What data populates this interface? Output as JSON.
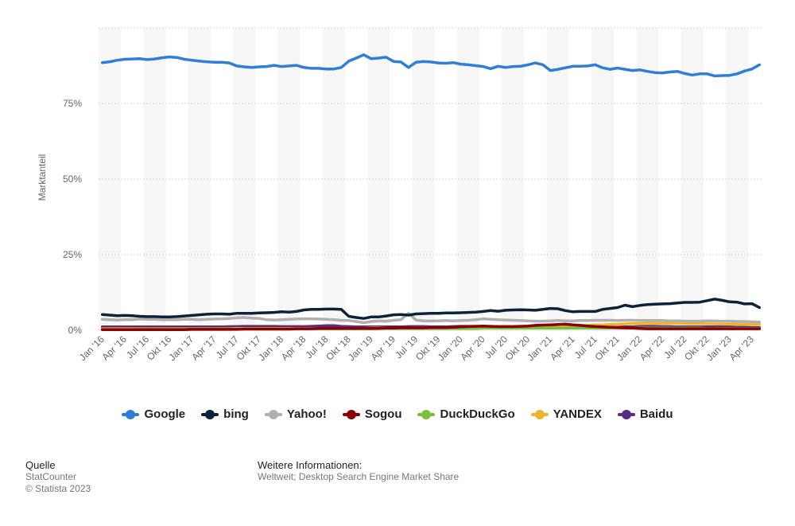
{
  "chart_data": {
    "type": "line",
    "ylabel": "Marktanteil",
    "ylim": [
      0,
      100
    ],
    "yticks": [
      0,
      25,
      50,
      75
    ],
    "ytick_labels": [
      "0%",
      "25%",
      "50%",
      "75%"
    ],
    "grid": true,
    "legend_position": "bottom",
    "x": [
      "Jan '16",
      "Feb '16",
      "Mär '16",
      "Apr '16",
      "Mai '16",
      "Jun '16",
      "Jul '16",
      "Aug '16",
      "Sep '16",
      "Okt '16",
      "Nov '16",
      "Dez '16",
      "Jan '17",
      "Feb '17",
      "Mär '17",
      "Apr '17",
      "Mai '17",
      "Jun '17",
      "Jul '17",
      "Aug '17",
      "Sep '17",
      "Okt '17",
      "Nov '17",
      "Dez '17",
      "Jan '18",
      "Feb '18",
      "Mär '18",
      "Apr '18",
      "Mai '18",
      "Jun '18",
      "Jul '18",
      "Aug '18",
      "Sep '18",
      "Okt '18",
      "Nov '18",
      "Dez '18",
      "Jan '19",
      "Feb '19",
      "Mär '19",
      "Apr '19",
      "Mai '19",
      "Jun '19",
      "Jul '19",
      "Aug '19",
      "Sep '19",
      "Okt '19",
      "Nov '19",
      "Dez '19",
      "Jan '20",
      "Feb '20",
      "Mär '20",
      "Apr '20",
      "Mai '20",
      "Jun '20",
      "Jul '20",
      "Aug '20",
      "Sep '20",
      "Okt '20",
      "Nov '20",
      "Dez '20",
      "Jan '21",
      "Feb '21",
      "Mär '21",
      "Apr '21",
      "Mai '21",
      "Jun '21",
      "Jul '21",
      "Aug '21",
      "Sep '21",
      "Okt '21",
      "Nov '21",
      "Dez '21",
      "Jan '22",
      "Feb '22",
      "Mär '22",
      "Apr '22",
      "Mai '22",
      "Jun '22",
      "Jul '22",
      "Aug '22",
      "Sep '22",
      "Okt '22",
      "Nov '22",
      "Dez '22",
      "Jan '23",
      "Feb '23",
      "Mär '23",
      "Apr '23",
      "Mai '23"
    ],
    "xtick_labels": [
      "Jan '16",
      "Apr '16",
      "Jul '16",
      "Okt '16",
      "Jan '17",
      "Apr '17",
      "Jul '17",
      "Okt '17",
      "Jan '18",
      "Apr '18",
      "Jul '18",
      "Okt '18",
      "Jan '19",
      "Apr '19",
      "Jul '19",
      "Okt '19",
      "Jan '20",
      "Apr '20",
      "Jul '20",
      "Okt '20",
      "Jan '21",
      "Apr '21",
      "Jul '21",
      "Okt '21",
      "Jan '22",
      "Apr '22",
      "Jul '22",
      "Okt '22",
      "Jan '23",
      "Apr '23"
    ],
    "series": [
      {
        "name": "Google",
        "color": "#2f7ed8",
        "values": [
          88.5,
          88.8,
          89.3,
          89.6,
          89.7,
          89.8,
          89.5,
          89.7,
          90.1,
          90.4,
          90.2,
          89.6,
          89.3,
          89.0,
          88.8,
          88.6,
          88.6,
          88.4,
          87.4,
          87.1,
          86.9,
          87.1,
          87.2,
          87.6,
          87.2,
          87.4,
          87.6,
          86.9,
          86.6,
          86.6,
          86.4,
          86.4,
          86.9,
          89.0,
          90.0,
          91.1,
          89.8,
          90.0,
          90.3,
          88.9,
          88.7,
          86.9,
          88.6,
          88.9,
          88.7,
          88.4,
          88.3,
          88.5,
          88.0,
          87.8,
          87.5,
          87.2,
          86.5,
          87.3,
          86.9,
          87.2,
          87.3,
          87.8,
          88.4,
          87.8,
          85.9,
          86.3,
          86.8,
          87.3,
          87.3,
          87.4,
          87.8,
          86.8,
          86.3,
          86.7,
          86.3,
          85.9,
          86.1,
          85.6,
          85.2,
          85.1,
          85.4,
          85.6,
          84.9,
          84.4,
          84.8,
          84.8,
          84.1,
          84.2,
          84.3,
          84.8,
          85.7,
          86.4,
          87.8
        ]
      },
      {
        "name": "bing",
        "color": "#0d233a",
        "values": [
          5.2,
          5.0,
          4.8,
          4.9,
          4.8,
          4.6,
          4.5,
          4.5,
          4.4,
          4.4,
          4.5,
          4.7,
          4.9,
          5.1,
          5.3,
          5.4,
          5.4,
          5.3,
          5.6,
          5.6,
          5.6,
          5.7,
          5.8,
          5.9,
          6.1,
          6.0,
          6.2,
          6.7,
          6.9,
          6.9,
          7.0,
          7.0,
          6.9,
          4.6,
          4.2,
          3.9,
          4.4,
          4.4,
          4.7,
          5.1,
          5.2,
          5.0,
          5.4,
          5.5,
          5.6,
          5.6,
          5.7,
          5.7,
          5.8,
          5.9,
          6.0,
          6.2,
          6.5,
          6.3,
          6.6,
          6.7,
          6.8,
          6.7,
          6.6,
          6.9,
          7.2,
          7.1,
          6.5,
          6.1,
          6.2,
          6.2,
          6.2,
          6.9,
          7.2,
          7.5,
          8.3,
          7.8,
          8.2,
          8.5,
          8.6,
          8.7,
          8.8,
          9.0,
          9.2,
          9.2,
          9.3,
          9.8,
          10.3,
          9.9,
          9.4,
          9.3,
          8.7,
          8.8,
          7.5
        ]
      },
      {
        "name": "Yahoo!",
        "color": "#b0b0b0",
        "values": [
          3.6,
          3.5,
          3.4,
          3.5,
          3.5,
          3.7,
          3.6,
          3.6,
          3.5,
          3.5,
          3.5,
          3.6,
          3.6,
          3.5,
          3.6,
          3.7,
          3.8,
          3.9,
          4.1,
          4.2,
          4.0,
          3.9,
          3.5,
          3.4,
          3.5,
          3.6,
          3.7,
          3.8,
          3.8,
          3.7,
          3.6,
          3.5,
          3.3,
          3.2,
          2.9,
          2.5,
          2.9,
          3.1,
          3.0,
          3.3,
          3.5,
          5.6,
          3.4,
          3.1,
          3.1,
          3.1,
          3.2,
          3.1,
          3.2,
          3.3,
          3.5,
          3.8,
          3.6,
          3.5,
          3.4,
          3.3,
          3.2,
          3.1,
          3.0,
          3.0,
          3.1,
          3.2,
          3.1,
          3.1,
          3.2,
          3.2,
          3.3,
          3.3,
          3.3,
          3.2,
          3.3,
          3.3,
          3.2,
          3.2,
          3.2,
          3.2,
          3.1,
          3.1,
          3.0,
          3.0,
          3.0,
          3.1,
          3.1,
          3.0,
          3.0,
          2.9,
          2.9,
          2.8,
          2.7
        ]
      },
      {
        "name": "Sogou",
        "color": "#8b0000",
        "values": [
          0.2,
          0.2,
          0.2,
          0.2,
          0.2,
          0.2,
          0.2,
          0.2,
          0.2,
          0.2,
          0.2,
          0.2,
          0.3,
          0.3,
          0.3,
          0.3,
          0.3,
          0.3,
          0.3,
          0.4,
          0.4,
          0.4,
          0.4,
          0.4,
          0.4,
          0.4,
          0.5,
          0.5,
          0.5,
          0.6,
          0.6,
          0.6,
          0.6,
          0.6,
          0.6,
          0.6,
          0.6,
          0.6,
          0.7,
          0.7,
          0.8,
          0.8,
          0.8,
          0.8,
          0.9,
          0.9,
          0.9,
          1.0,
          1.1,
          1.2,
          1.3,
          1.4,
          1.3,
          1.2,
          1.2,
          1.2,
          1.3,
          1.4,
          1.6,
          1.7,
          1.8,
          1.9,
          2.0,
          1.8,
          1.6,
          1.4,
          1.2,
          1.1,
          1.0,
          0.9,
          0.8,
          0.7,
          0.6,
          0.5,
          0.5,
          0.5,
          0.5,
          0.5,
          0.5,
          0.5,
          0.5,
          0.5,
          0.5,
          0.5,
          0.5,
          0.5,
          0.5,
          0.5,
          0.5
        ]
      },
      {
        "name": "DuckDuckGo",
        "color": "#77c13a",
        "values": [
          0.2,
          0.2,
          0.2,
          0.2,
          0.2,
          0.3,
          0.3,
          0.3,
          0.3,
          0.3,
          0.3,
          0.3,
          0.3,
          0.3,
          0.3,
          0.3,
          0.3,
          0.3,
          0.4,
          0.4,
          0.4,
          0.4,
          0.4,
          0.4,
          0.4,
          0.4,
          0.4,
          0.5,
          0.5,
          0.5,
          0.5,
          0.5,
          0.5,
          0.5,
          0.5,
          0.5,
          0.5,
          0.6,
          0.6,
          0.6,
          0.6,
          0.6,
          0.6,
          0.6,
          0.6,
          0.6,
          0.6,
          0.6,
          0.6,
          0.6,
          0.6,
          0.7,
          0.7,
          0.7,
          0.7,
          0.7,
          0.7,
          0.7,
          0.7,
          0.7,
          0.7,
          0.7,
          0.7,
          0.7,
          0.7,
          0.7,
          0.7,
          0.7,
          0.7,
          0.7,
          0.7,
          0.7,
          0.7,
          0.7,
          0.7,
          0.7,
          0.7,
          0.7,
          0.7,
          0.7,
          0.7,
          0.6,
          0.6,
          0.6,
          0.6,
          0.6,
          0.6,
          0.6,
          0.6
        ]
      },
      {
        "name": "YANDEX",
        "color": "#f0b428",
        "values": [
          0.5,
          0.5,
          0.5,
          0.5,
          0.5,
          0.5,
          0.5,
          0.5,
          0.5,
          0.5,
          0.5,
          0.5,
          0.5,
          0.5,
          0.5,
          0.5,
          0.5,
          0.5,
          0.6,
          0.6,
          0.6,
          0.6,
          0.6,
          0.6,
          0.6,
          0.6,
          0.6,
          0.6,
          0.6,
          0.6,
          0.6,
          0.6,
          0.6,
          0.6,
          0.6,
          0.6,
          0.7,
          0.7,
          0.7,
          0.7,
          0.7,
          0.7,
          0.8,
          0.8,
          0.8,
          0.8,
          0.8,
          0.8,
          0.8,
          0.8,
          0.9,
          0.9,
          0.9,
          0.9,
          0.9,
          0.9,
          0.9,
          0.9,
          0.9,
          0.9,
          1.0,
          1.0,
          1.1,
          1.2,
          1.5,
          1.6,
          1.7,
          1.8,
          1.9,
          2.0,
          2.1,
          2.2,
          2.2,
          2.3,
          2.3,
          2.3,
          2.3,
          2.3,
          2.2,
          2.2,
          2.2,
          2.1,
          2.1,
          2.0,
          2.0,
          2.0,
          2.0,
          1.9,
          1.9
        ]
      },
      {
        "name": "Baidu",
        "color": "#5a2b82",
        "values": [
          1.1,
          1.1,
          1.1,
          1.1,
          1.1,
          1.1,
          1.1,
          1.1,
          1.1,
          1.1,
          1.1,
          1.1,
          1.1,
          1.1,
          1.1,
          1.1,
          1.1,
          1.2,
          1.2,
          1.3,
          1.3,
          1.3,
          1.3,
          1.3,
          1.2,
          1.2,
          1.2,
          1.2,
          1.3,
          1.4,
          1.5,
          1.5,
          1.3,
          1.2,
          1.1,
          1.1,
          1.1,
          1.1,
          1.1,
          1.1,
          1.1,
          1.2,
          1.2,
          1.2,
          1.1,
          1.1,
          1.1,
          1.2,
          1.3,
          1.3,
          1.3,
          1.2,
          1.2,
          1.1,
          1.1,
          1.1,
          1.1,
          1.1,
          1.1,
          1.0,
          1.0,
          1.0,
          1.0,
          1.0,
          1.0,
          1.0,
          1.0,
          1.0,
          1.0,
          1.0,
          1.1,
          1.1,
          1.2,
          1.3,
          1.3,
          1.2,
          1.2,
          1.1,
          1.1,
          1.1,
          1.1,
          1.1,
          1.1,
          1.1,
          1.1,
          1.0,
          1.0,
          0.9,
          0.9
        ]
      }
    ]
  },
  "footer": {
    "source_heading": "Quelle",
    "source_name": "StatCounter",
    "copyright": "© Statista 2023",
    "info_heading": "Weitere Informationen:",
    "info_text": "Weltweit; Desktop Search Engine Market Share"
  }
}
